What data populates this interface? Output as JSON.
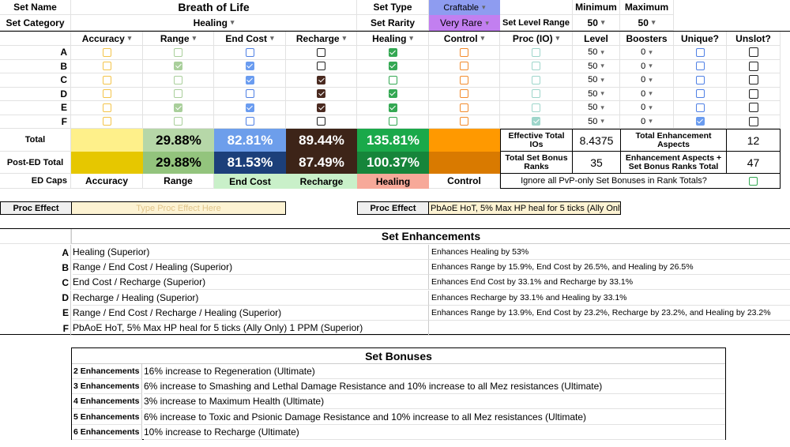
{
  "header": {
    "set_name_label": "Set Name",
    "set_name": "Breath of Life",
    "set_type_label": "Set Type",
    "set_type": "Craftable",
    "minimum_label": "Minimum",
    "maximum_label": "Maximum",
    "set_category_label": "Set Category",
    "set_category": "Healing",
    "set_rarity_label": "Set Rarity",
    "set_rarity": "Very Rare",
    "set_level_range_label": "Set Level Range",
    "min_level": "50",
    "max_level": "50"
  },
  "columns": {
    "accuracy": "Accuracy",
    "range": "Range",
    "end_cost": "End Cost",
    "recharge": "Recharge",
    "healing": "Healing",
    "control": "Control",
    "proc": "Proc (IO)",
    "level": "Level",
    "boosters": "Boosters",
    "unique": "Unique?",
    "unslot": "Unslot?"
  },
  "rows": [
    {
      "id": "A",
      "accuracy": false,
      "range": false,
      "end_cost": false,
      "recharge": false,
      "healing": true,
      "control": false,
      "proc": false,
      "level": "50",
      "boosters": "0",
      "unique": false,
      "unslot": false
    },
    {
      "id": "B",
      "accuracy": false,
      "range": true,
      "end_cost": true,
      "recharge": false,
      "healing": true,
      "control": false,
      "proc": false,
      "level": "50",
      "boosters": "0",
      "unique": false,
      "unslot": false
    },
    {
      "id": "C",
      "accuracy": false,
      "range": false,
      "end_cost": true,
      "recharge": true,
      "healing": false,
      "control": false,
      "proc": false,
      "level": "50",
      "boosters": "0",
      "unique": false,
      "unslot": false
    },
    {
      "id": "D",
      "accuracy": false,
      "range": false,
      "end_cost": false,
      "recharge": true,
      "healing": true,
      "control": false,
      "proc": false,
      "level": "50",
      "boosters": "0",
      "unique": false,
      "unslot": false
    },
    {
      "id": "E",
      "accuracy": false,
      "range": true,
      "end_cost": true,
      "recharge": true,
      "healing": true,
      "control": false,
      "proc": false,
      "level": "50",
      "boosters": "0",
      "unique": false,
      "unslot": false
    },
    {
      "id": "F",
      "accuracy": false,
      "range": false,
      "end_cost": false,
      "recharge": false,
      "healing": false,
      "control": false,
      "proc": true,
      "level": "50",
      "boosters": "0",
      "unique": true,
      "unslot": false
    }
  ],
  "totals": {
    "total_label": "Total",
    "post_ed_label": "Post-ED Total",
    "ed_caps_label": "ED Caps",
    "total": {
      "accuracy": "",
      "range": "29.88%",
      "end_cost": "82.81%",
      "recharge": "89.44%",
      "healing": "135.81%",
      "control": ""
    },
    "post_ed": {
      "accuracy": "",
      "range": "29.88%",
      "end_cost": "81.53%",
      "recharge": "87.49%",
      "healing": "100.37%",
      "control": ""
    },
    "ed_caps": {
      "accuracy": "Accuracy",
      "range": "Range",
      "end_cost": "End Cost",
      "recharge": "Recharge",
      "healing": "Healing",
      "control": "Control"
    },
    "effective_total_ios_label": "Effective Total IOs",
    "effective_total_ios": "8.4375",
    "total_enh_aspects_label": "Total Enhancement Aspects",
    "total_enh_aspects": "12",
    "total_set_bonus_ranks_label": "Total Set Bonus Ranks",
    "total_set_bonus_ranks": "35",
    "enh_plus_bonus_label": "Enhancement Aspects + Set Bonus Ranks Total",
    "enh_plus_bonus": "47",
    "ignore_pvp_label": "Ignore all PvP-only Set Bonuses in Rank Totals?"
  },
  "proc": {
    "label_left": "Proc Effect",
    "placeholder": "Type Proc Effect Here",
    "label_right": "Proc Effect",
    "value_right": "PbAoE HoT, 5% Max HP heal for 5 ticks (Ally Only)"
  },
  "set_enhancements": {
    "title": "Set Enhancements",
    "items": [
      {
        "id": "A",
        "name": "Healing (Superior)",
        "effect": "Enhances Healing by 53%"
      },
      {
        "id": "B",
        "name": "Range / End Cost / Healing (Superior)",
        "effect": "Enhances Range by 15.9%, End Cost by 26.5%, and Healing by 26.5%"
      },
      {
        "id": "C",
        "name": "End Cost / Recharge (Superior)",
        "effect": "Enhances End Cost by 33.1% and Recharge by 33.1%"
      },
      {
        "id": "D",
        "name": "Recharge / Healing (Superior)",
        "effect": "Enhances Recharge by 33.1% and Healing by 33.1%"
      },
      {
        "id": "E",
        "name": "Range / End Cost / Recharge / Healing (Superior)",
        "effect": "Enhances Range by 13.9%, End Cost by 23.2%, Recharge by 23.2%, and Healing by 23.2%"
      },
      {
        "id": "F",
        "name": "PbAoE HoT, 5% Max HP heal for 5 ticks (Ally Only) 1 PPM (Superior)",
        "effect": ""
      }
    ]
  },
  "set_bonuses": {
    "title": "Set Bonuses",
    "items": [
      {
        "count": "2 Enhancements",
        "text": "16% increase to Regeneration (Ultimate)"
      },
      {
        "count": "3 Enhancements",
        "text": "6% increase to Smashing and Lethal Damage Resistance and 10% increase to all Mez resistances (Ultimate)"
      },
      {
        "count": "4 Enhancements",
        "text": "3% increase to Maximum Health (Ultimate)"
      },
      {
        "count": "5 Enhancements",
        "text": "6% increase to Toxic and Psionic Damage Resistance and 10% increase to all Mez resistances (Ultimate)"
      },
      {
        "count": "6 Enhancements",
        "text": "10% increase to Recharge (Ultimate)"
      }
    ]
  },
  "colors": {
    "accuracy_total": "#fef08a",
    "accuracy_post": "#e6c700",
    "range_total": "#b6d7a8",
    "range_post": "#93c47d",
    "end_total": "#6d9eeb",
    "end_post": "#1c3f7a",
    "rech_total": "#3d2418",
    "rech_post": "#3d2418",
    "heal_total": "#1aa94a",
    "heal_post": "#16853a",
    "control_total": "#ff9900",
    "control_post": "#d97a00",
    "type_fill": "#8e9cf0",
    "rarity_fill": "#c27ff0",
    "header_fill": "#efefef",
    "ed_end": "#c9f0c9",
    "ed_rech": "#c9f0c9",
    "ed_heal": "#f7a999",
    "proc_fill": "#fdf3d3"
  }
}
